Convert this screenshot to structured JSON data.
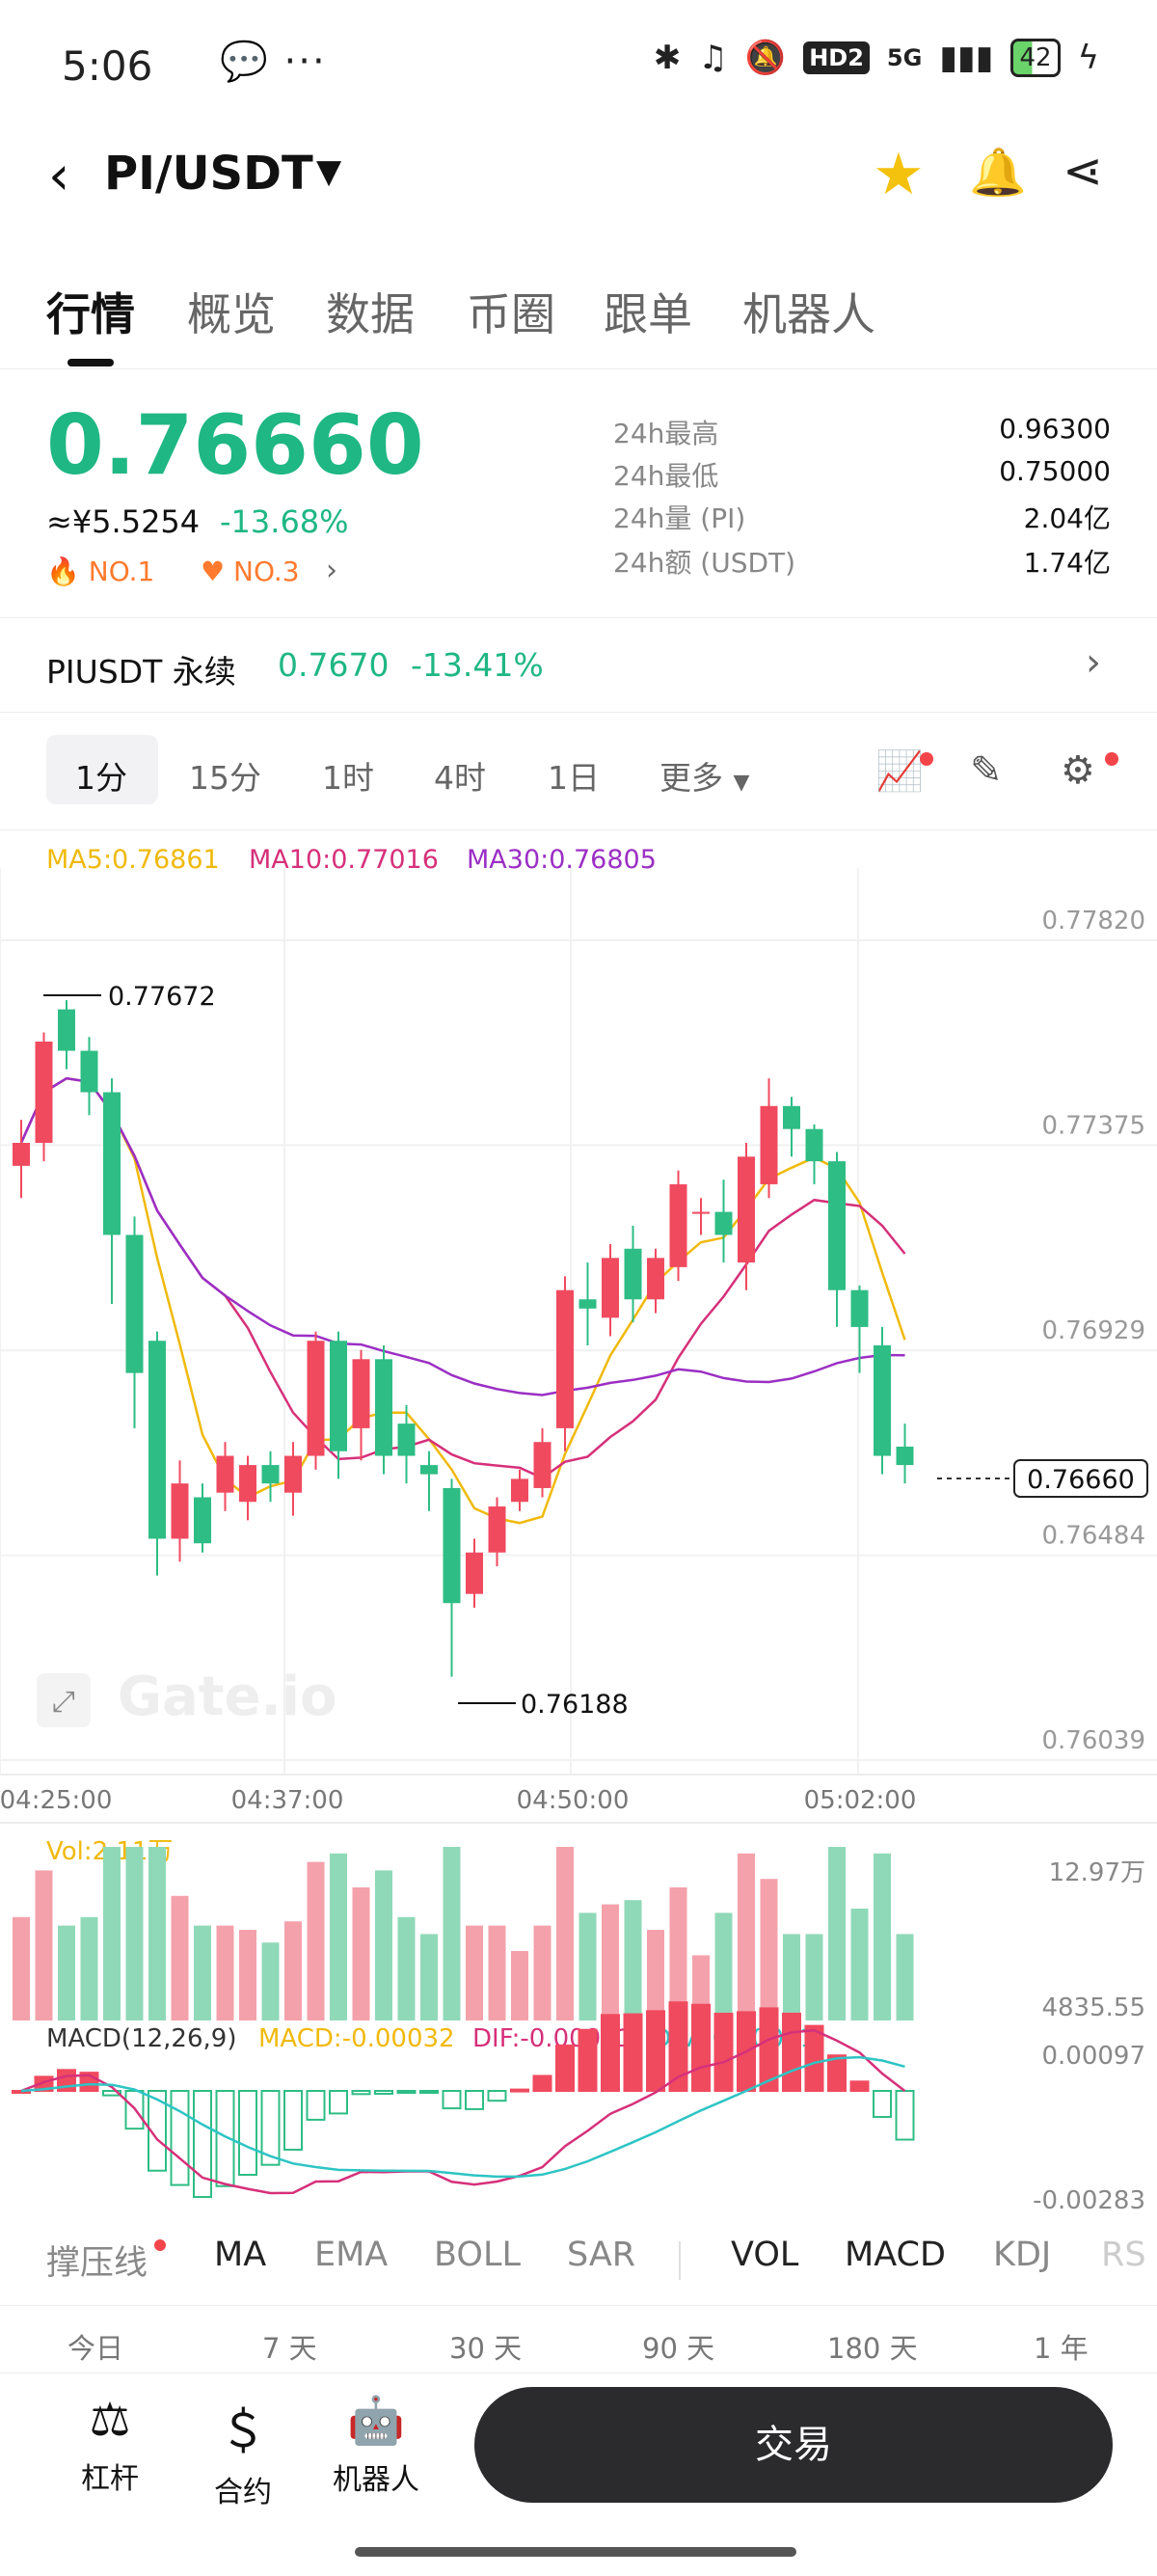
{
  "status_bar": {
    "time": "5:06",
    "battery": "42",
    "hd_label": "HD2",
    "signal_label": "5G"
  },
  "header": {
    "pair": "PI/USDT"
  },
  "tabs": [
    "行情",
    "概览",
    "数据",
    "币圈",
    "跟单",
    "机器人"
  ],
  "ticker": {
    "price": "0.76660",
    "cny": "≈¥5.5254",
    "change": "-13.68%",
    "rank1": "NO.1",
    "rank2": "NO.3",
    "stats": [
      {
        "label": "24h最高",
        "value": "0.96300"
      },
      {
        "label": "24h最低",
        "value": "0.75000"
      },
      {
        "label": "24h量 (PI)",
        "value": "2.04亿"
      },
      {
        "label": "24h额 (USDT)",
        "value": "1.74亿"
      }
    ]
  },
  "perp": {
    "name": "PIUSDT 永续",
    "price": "0.7670",
    "change": "-13.41%"
  },
  "intervals": [
    "1分",
    "15分",
    "1时",
    "4时",
    "1日",
    "更多"
  ],
  "ma_legend": {
    "ma5": "MA5:0.76861",
    "ma10": "MA10:0.77016",
    "ma30": "MA30:0.76805"
  },
  "colors": {
    "up": "#f04a5f",
    "down": "#2ebd85",
    "ma5": "#f0b90b",
    "ma10": "#d6307a",
    "ma30": "#9b2fc4",
    "dif": "#d6307a",
    "dea": "#2ec4c4"
  },
  "chart_data": {
    "type": "candlestick",
    "y_ticks": [
      "0.77820",
      "0.77375",
      "0.76929",
      "0.76484",
      "0.76039"
    ],
    "ylim": [
      0.76039,
      0.7782
    ],
    "x_ticks": [
      "04:25:00",
      "04:37:00",
      "04:50:00",
      "05:02:00"
    ],
    "high_label": "0.77672",
    "low_label": "0.76188",
    "last_price_label": "0.76660",
    "watermark": "Gate.io",
    "candles": [
      [
        0.7733,
        0.7738,
        0.7726,
        0.7743
      ],
      [
        0.7738,
        0.776,
        0.7734,
        0.7762
      ],
      [
        0.7767,
        0.7758,
        0.7754,
        0.7769
      ],
      [
        0.7758,
        0.7749,
        0.7744,
        0.7761
      ],
      [
        0.7749,
        0.7718,
        0.7703,
        0.7752
      ],
      [
        0.7718,
        0.7688,
        0.7676,
        0.7722
      ],
      [
        0.7695,
        0.7652,
        0.7644,
        0.7697
      ],
      [
        0.7652,
        0.7664,
        0.7647,
        0.7669
      ],
      [
        0.7661,
        0.7651,
        0.7649,
        0.7664
      ],
      [
        0.7662,
        0.767,
        0.7658,
        0.7673
      ],
      [
        0.766,
        0.7668,
        0.7656,
        0.767
      ],
      [
        0.7668,
        0.7664,
        0.766,
        0.7671
      ],
      [
        0.7662,
        0.767,
        0.7657,
        0.7673
      ],
      [
        0.767,
        0.7695,
        0.7667,
        0.7697
      ],
      [
        0.7695,
        0.7671,
        0.7665,
        0.7697
      ],
      [
        0.7676,
        0.7691,
        0.7669,
        0.7693
      ],
      [
        0.7691,
        0.767,
        0.7666,
        0.7694
      ],
      [
        0.7677,
        0.767,
        0.7664,
        0.7681
      ],
      [
        0.7668,
        0.7666,
        0.7658,
        0.7671
      ],
      [
        0.7663,
        0.7638,
        0.7622,
        0.7665
      ],
      [
        0.764,
        0.7649,
        0.7637,
        0.7652
      ],
      [
        0.7649,
        0.7659,
        0.7646,
        0.7661
      ],
      [
        0.766,
        0.7665,
        0.7658,
        0.7667
      ],
      [
        0.7663,
        0.7673,
        0.7661,
        0.7676
      ],
      [
        0.7676,
        0.7706,
        0.7671,
        0.7709
      ],
      [
        0.7704,
        0.7702,
        0.7694,
        0.7712
      ],
      [
        0.77,
        0.7713,
        0.7696,
        0.7716
      ],
      [
        0.7715,
        0.7704,
        0.7699,
        0.772
      ],
      [
        0.7704,
        0.7713,
        0.7701,
        0.7715
      ],
      [
        0.7711,
        0.7729,
        0.7708,
        0.7732
      ],
      [
        0.7723,
        0.7723,
        0.7718,
        0.7726
      ],
      [
        0.7723,
        0.7718,
        0.7712,
        0.773
      ],
      [
        0.7712,
        0.7735,
        0.7706,
        0.7738
      ],
      [
        0.7729,
        0.7746,
        0.7726,
        0.7752
      ],
      [
        0.7746,
        0.7741,
        0.7735,
        0.7748
      ],
      [
        0.7741,
        0.7734,
        0.7729,
        0.7742
      ],
      [
        0.7734,
        0.7706,
        0.7698,
        0.7736
      ],
      [
        0.7706,
        0.7698,
        0.7688,
        0.7707
      ],
      [
        0.7694,
        0.767,
        0.7666,
        0.7698
      ],
      [
        0.7672,
        0.7668,
        0.7664,
        0.7677
      ]
    ],
    "volume": {
      "label": "Vol:2.11万",
      "top_tick": "12.97万",
      "bottom_tick": "4835.55"
    },
    "macd": {
      "label": "MACD(12,26,9)",
      "macd": "MACD:-0.00032",
      "dif": "DIF:-0.00001",
      "dea": "DEA:0.00031",
      "top_tick": "0.00097",
      "bottom_tick": "-0.00283"
    }
  },
  "indicators": [
    "撑压线",
    "MA",
    "EMA",
    "BOLL",
    "SAR",
    "VOL",
    "MACD",
    "KDJ",
    "RS"
  ],
  "ranges": [
    "今日",
    "7 天",
    "30 天",
    "90 天",
    "180 天",
    "1 年"
  ],
  "nav": {
    "items": [
      "杠杆",
      "合约",
      "机器人"
    ],
    "trade": "交易"
  },
  "icons": [
    "back-arrow-icon",
    "caret-down-icon",
    "star-icon",
    "bell-icon",
    "share-icon",
    "fire-icon",
    "heart-icon",
    "chart-indicator-icon",
    "draw-pen-icon",
    "gear-icon",
    "expand-icon",
    "leverage-icon",
    "contract-icon",
    "robot-icon"
  ]
}
